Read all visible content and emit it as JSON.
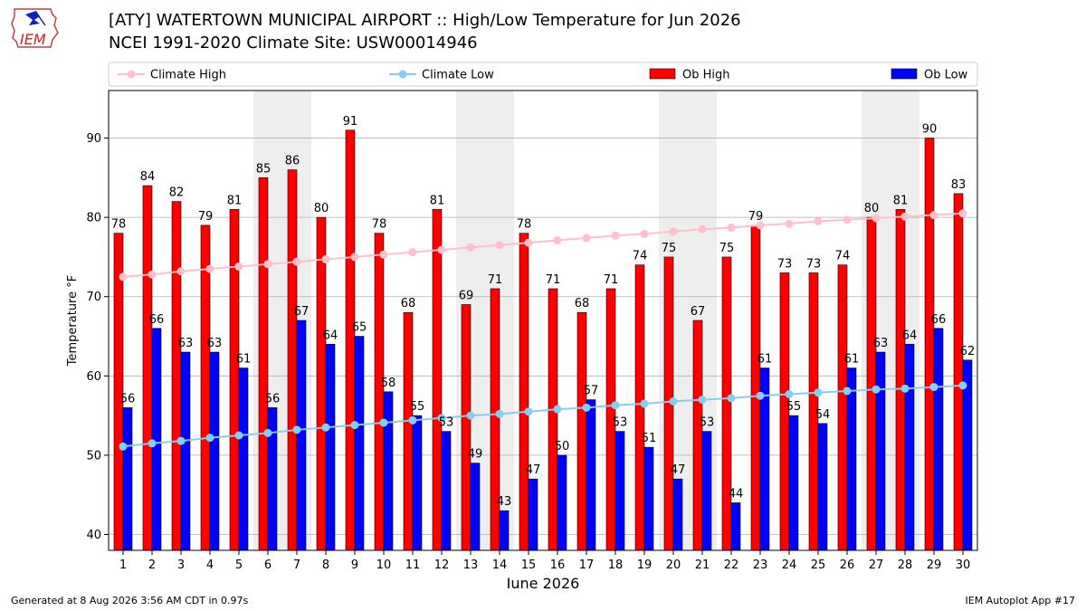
{
  "header": {
    "title": "[ATY] WATERTOWN MUNICIPAL AIRPORT :: High/Low Temperature for Jun 2026",
    "subtitle": "NCEI 1991-2020 Climate Site: USW00014946"
  },
  "logo": {
    "text": "IEM",
    "icon": "iem-logo-icon"
  },
  "footer": {
    "generated": "Generated at 8 Aug 2026 3:56 AM CDT in 0.97s",
    "app": "IEM Autoplot App #17"
  },
  "colors": {
    "ob_high": "#ff0000",
    "ob_low": "#0000ff",
    "climate_high": "#ffc0cb",
    "climate_low": "#87ceeb",
    "weekend_shade": "#eeeeee",
    "grid": "#b0b0b0"
  },
  "chart_data": {
    "type": "bar",
    "xlabel": "June 2026",
    "ylabel": "Temperature °F",
    "ylim": [
      38,
      96
    ],
    "yticks": [
      40,
      50,
      60,
      70,
      80,
      90
    ],
    "grid": "horizontal",
    "legend_placement": "top",
    "categories": [
      "1",
      "2",
      "3",
      "4",
      "5",
      "6",
      "7",
      "8",
      "9",
      "10",
      "11",
      "12",
      "13",
      "14",
      "15",
      "16",
      "17",
      "18",
      "19",
      "20",
      "21",
      "22",
      "23",
      "24",
      "25",
      "26",
      "27",
      "28",
      "29",
      "30"
    ],
    "shaded_days": [
      [
        6,
        7
      ],
      [
        13,
        14
      ],
      [
        20,
        21
      ],
      [
        27,
        28
      ]
    ],
    "series": [
      {
        "name": "Ob High",
        "kind": "bar",
        "values": [
          78,
          84,
          82,
          79,
          81,
          85,
          86,
          80,
          91,
          78,
          68,
          81,
          69,
          71,
          78,
          71,
          68,
          71,
          74,
          75,
          67,
          75,
          79,
          73,
          73,
          74,
          80,
          81,
          90,
          83
        ]
      },
      {
        "name": "Ob Low",
        "kind": "bar",
        "values": [
          56,
          66,
          63,
          63,
          61,
          56,
          67,
          64,
          65,
          58,
          55,
          53,
          49,
          43,
          47,
          50,
          57,
          53,
          51,
          47,
          53,
          44,
          61,
          55,
          54,
          61,
          63,
          64,
          66,
          62
        ]
      },
      {
        "name": "Climate High",
        "kind": "line",
        "values": [
          72.5,
          72.8,
          73.2,
          73.5,
          73.8,
          74.1,
          74.4,
          74.7,
          75.0,
          75.3,
          75.6,
          75.9,
          76.2,
          76.5,
          76.8,
          77.1,
          77.4,
          77.7,
          77.9,
          78.2,
          78.5,
          78.7,
          79.0,
          79.2,
          79.5,
          79.7,
          79.9,
          80.1,
          80.3,
          80.5
        ]
      },
      {
        "name": "Climate Low",
        "kind": "line",
        "values": [
          51.1,
          51.5,
          51.8,
          52.2,
          52.5,
          52.8,
          53.2,
          53.5,
          53.8,
          54.1,
          54.4,
          54.7,
          55.0,
          55.2,
          55.5,
          55.8,
          56.0,
          56.3,
          56.5,
          56.8,
          57.0,
          57.2,
          57.5,
          57.7,
          57.9,
          58.1,
          58.3,
          58.4,
          58.6,
          58.8
        ]
      }
    ]
  }
}
